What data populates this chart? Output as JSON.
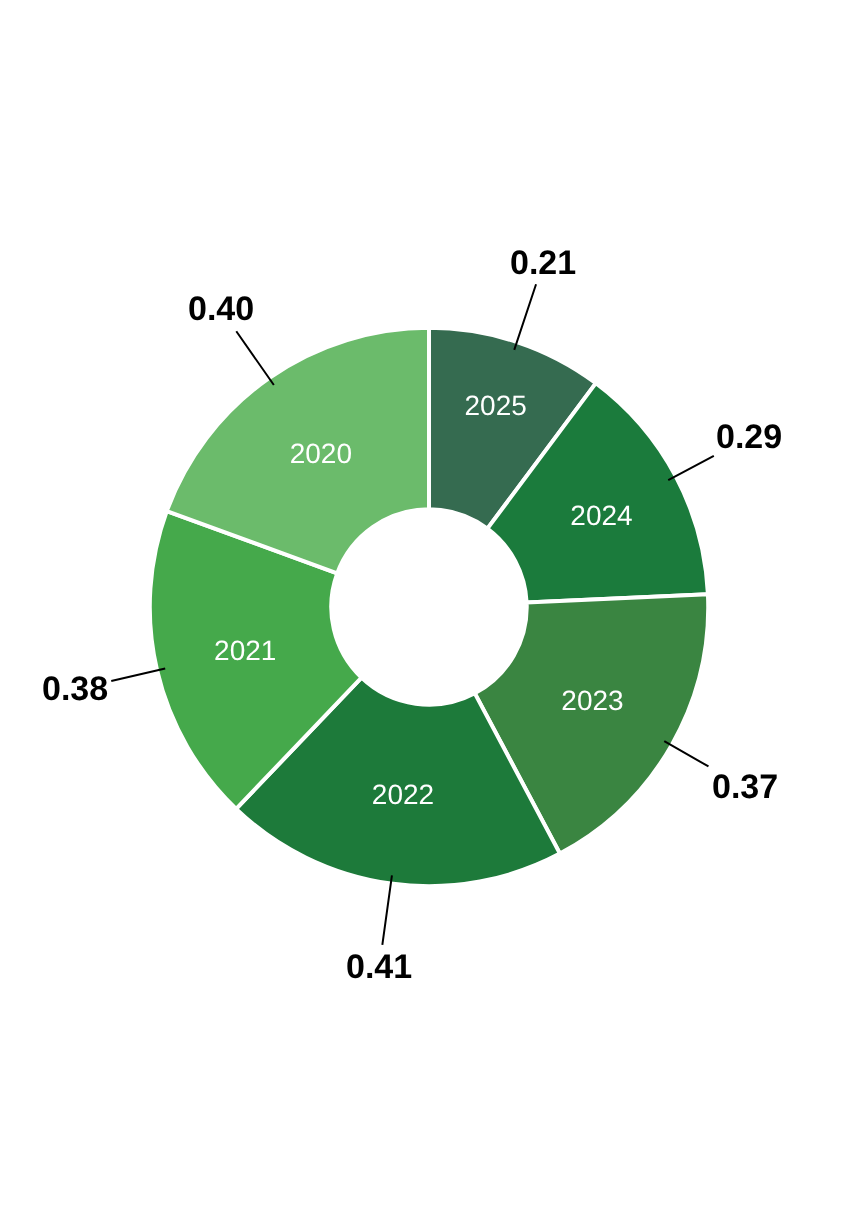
{
  "chart_data": {
    "type": "donut",
    "categories": [
      "2025",
      "2024",
      "2023",
      "2022",
      "2021",
      "2020"
    ],
    "values": [
      0.21,
      0.29,
      0.37,
      0.41,
      0.38,
      0.4
    ],
    "value_labels": [
      "0.21",
      "0.29",
      "0.37",
      "0.41",
      "0.38",
      "0.40"
    ],
    "colors": [
      "#356b50",
      "#1b7b3c",
      "#3a8541",
      "#1d7a3a",
      "#45a94b",
      "#6bbb6b"
    ]
  }
}
